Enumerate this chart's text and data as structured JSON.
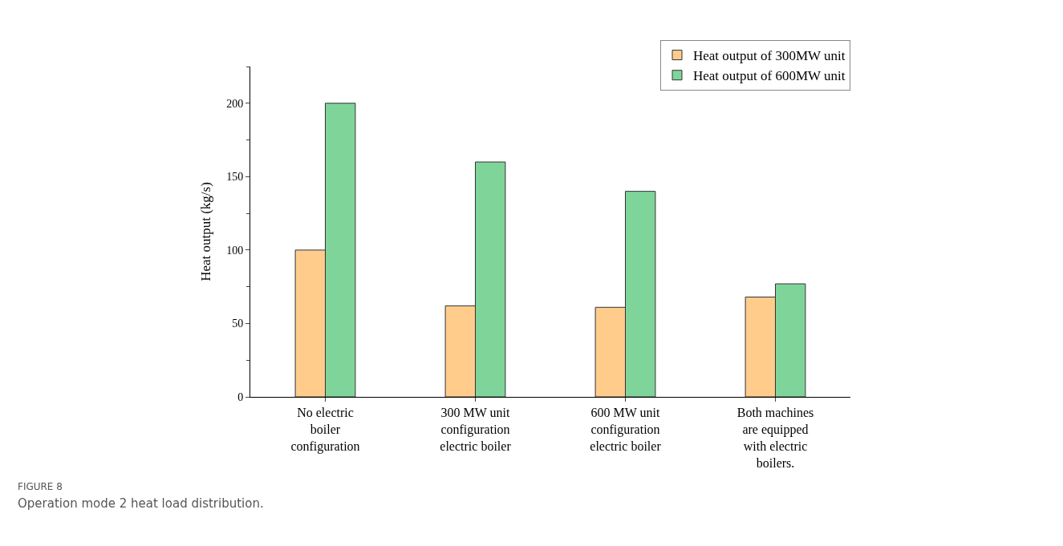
{
  "chart_data": {
    "type": "bar",
    "ylabel": "Heat output (kg/s)",
    "categories": [
      "No electric boiler configuration",
      "300 MW unit configuration electric boiler",
      "600 MW unit configuration electric boiler",
      "Both machines are equipped with electric boilers."
    ],
    "series": [
      {
        "name": "Heat output of 300MW unit",
        "color": "#ffcc8c",
        "values": [
          100,
          62,
          61,
          68
        ]
      },
      {
        "name": "Heat output of 600MW unit",
        "color": "#7fd49a",
        "values": [
          200,
          160,
          140,
          77
        ]
      }
    ],
    "ylim": [
      0,
      225
    ],
    "yticks": [
      0,
      50,
      100,
      150,
      200
    ],
    "legend": "top right",
    "annotations": [
      "FIGURE 8",
      "Operation mode 2 heat load distribution."
    ]
  }
}
